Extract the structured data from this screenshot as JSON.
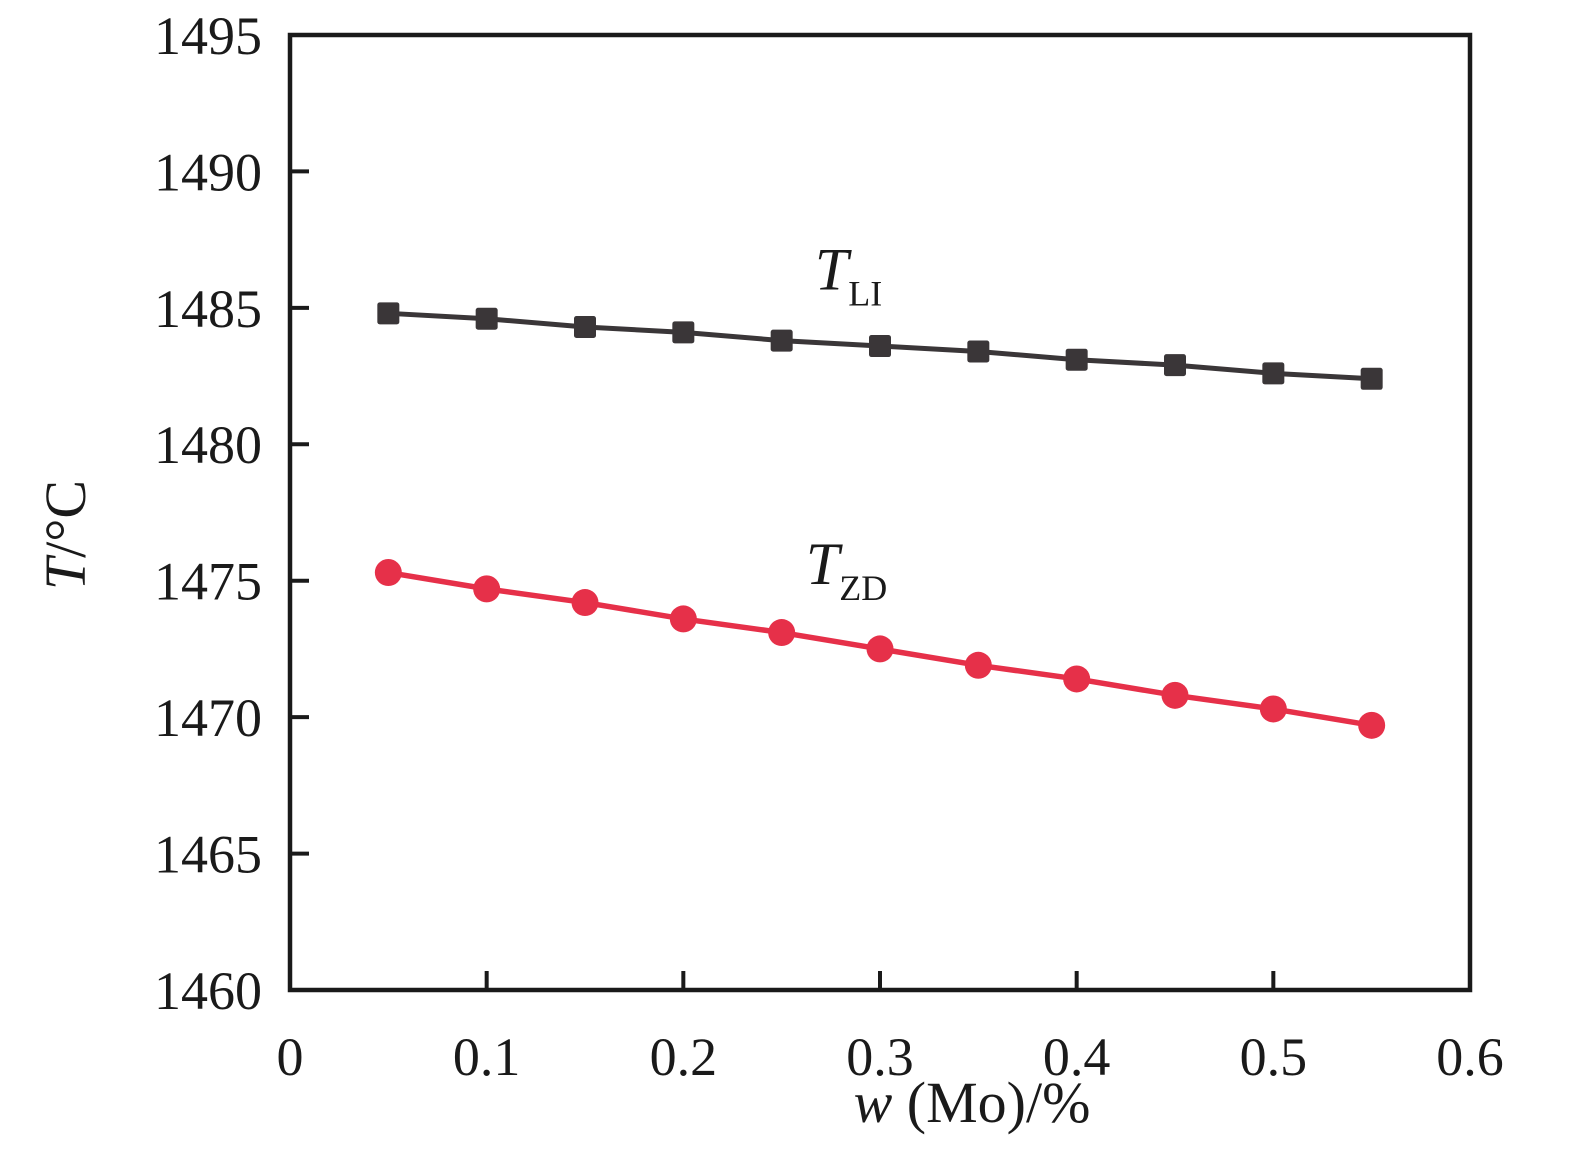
{
  "figure": {
    "background": "#ffffff",
    "axis_color": "#1a1a1a"
  },
  "chart_data": {
    "type": "line",
    "title": "",
    "xlabel_italic": "w",
    "xlabel_rest": " (Mo)/%",
    "ylabel_italic": "T",
    "ylabel_rest": "/°C",
    "xlim": [
      0,
      0.6
    ],
    "ylim": [
      1460,
      1495
    ],
    "xtick_values": [
      0,
      0.1,
      0.2,
      0.3,
      0.4,
      0.5,
      0.6
    ],
    "xtick_labels": [
      "0",
      "0.1",
      "0.2",
      "0.3",
      "0.4",
      "0.5",
      "0.6"
    ],
    "ytick_values": [
      1460,
      1465,
      1470,
      1475,
      1480,
      1485,
      1490,
      1495
    ],
    "ytick_labels": [
      "1460",
      "1465",
      "1470",
      "1475",
      "1480",
      "1485",
      "1490",
      "1495"
    ],
    "grid": false,
    "legend": "inline-annotations",
    "x": [
      0.05,
      0.1,
      0.15,
      0.2,
      0.25,
      0.3,
      0.35,
      0.4,
      0.45,
      0.5,
      0.55
    ],
    "series": [
      {
        "name": "T_LI",
        "label_main": "T",
        "label_sub": "LI",
        "marker": "square",
        "color": "#3a3638",
        "line_width": 5,
        "marker_size": 22,
        "values": [
          1484.8,
          1484.6,
          1484.3,
          1484.1,
          1483.8,
          1483.6,
          1483.4,
          1483.1,
          1482.9,
          1482.6,
          1482.4
        ],
        "label_anchor": [
          0.284,
          1485.9
        ]
      },
      {
        "name": "T_ZD",
        "label_main": "T",
        "label_sub": "ZD",
        "marker": "circle",
        "color": "#e63049",
        "line_width": 5.5,
        "marker_size": 27,
        "values": [
          1475.3,
          1474.7,
          1474.2,
          1473.6,
          1473.1,
          1472.5,
          1471.9,
          1471.4,
          1470.8,
          1470.3,
          1469.7
        ],
        "label_anchor": [
          0.283,
          1475.1
        ]
      }
    ]
  }
}
